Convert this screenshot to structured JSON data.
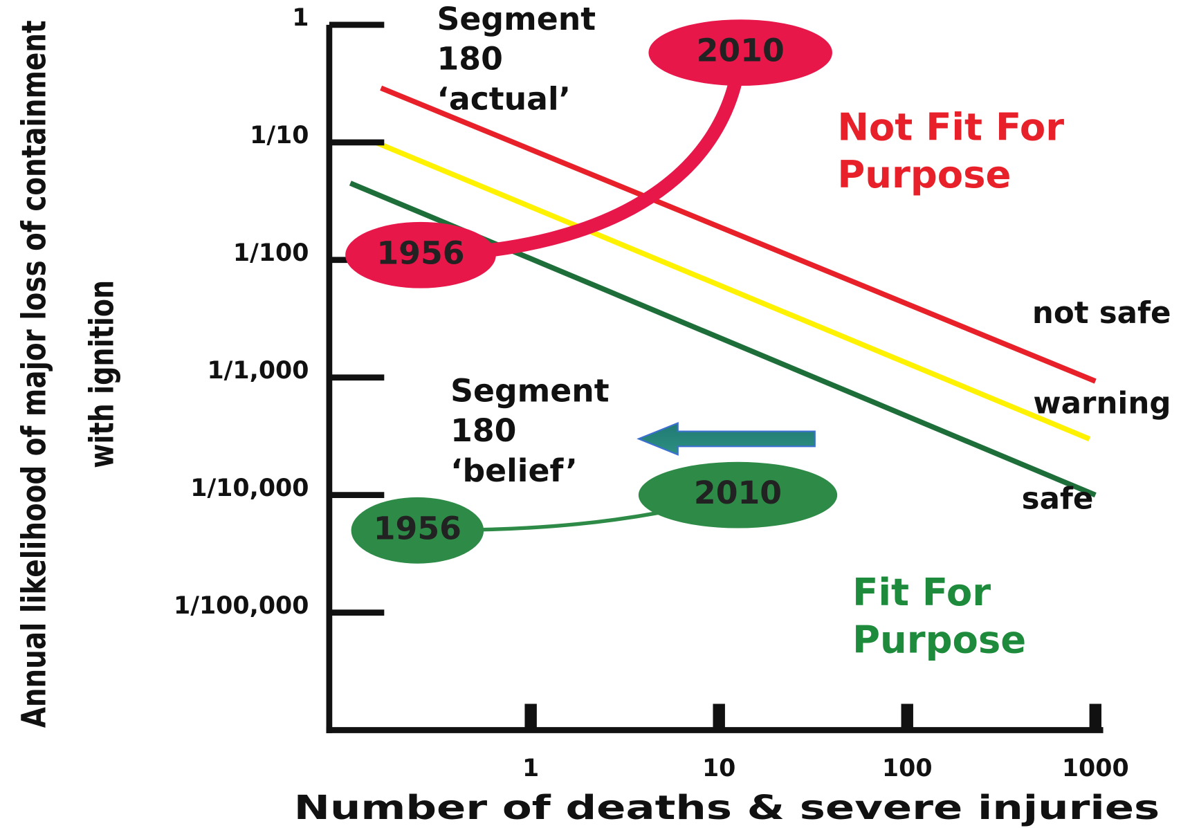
{
  "chart_data": {
    "type": "line",
    "xlog": true,
    "ylog": true,
    "xlabel": "Number of deaths & severe injuries",
    "ylabel": [
      "Annual likelihood of major loss of containment",
      "with ignition"
    ],
    "xlim": [
      0.085,
      1100
    ],
    "ylim": [
      1e-06,
      1
    ],
    "xticks": [
      1,
      10,
      100,
      1000
    ],
    "yticks": [
      1,
      {
        "value": 0.1,
        "label": "1/10"
      },
      {
        "value": 0.01,
        "label": "1/100"
      },
      {
        "value": 0.001,
        "label": "1/1,000"
      },
      {
        "value": 0.0001,
        "label": "1/10,000"
      },
      {
        "value": 1e-05,
        "label": "1/100,000"
      }
    ],
    "series": [
      {
        "name": "not safe",
        "color": "#e8202a",
        "x": [
          0.16,
          1000
        ],
        "values": [
          0.29,
          0.00093
        ]
      },
      {
        "name": "warning",
        "color": "#fff200",
        "x": [
          0.15,
          930
        ],
        "values": [
          0.1,
          0.0003
        ]
      },
      {
        "name": "safe",
        "color": "#1e6e3a",
        "x": [
          0.11,
          1000
        ],
        "values": [
          0.045,
          0.0001
        ]
      }
    ],
    "annotations": [
      {
        "text": [
          "Segment",
          "180",
          "‘actual’"
        ],
        "color": "#e8174a",
        "points": [
          {
            "label": "1956",
            "x": 0.26,
            "y": 0.011
          },
          {
            "label": "2010",
            "x": 13,
            "y": 0.58
          }
        ]
      },
      {
        "text": [
          "Segment",
          "180",
          "‘belief’"
        ],
        "color": "#2e8b47",
        "points": [
          {
            "label": "1956",
            "x": 0.25,
            "y": 5e-05
          },
          {
            "label": "2010",
            "x": 12.6,
            "y": 0.0001
          }
        ]
      }
    ],
    "regions": [
      {
        "text": [
          "Not Fit For",
          "Purpose"
        ],
        "color": "#e8202a"
      },
      {
        "text": [
          "Fit For",
          "Purpose"
        ],
        "color": "#1e8a3c"
      }
    ]
  }
}
